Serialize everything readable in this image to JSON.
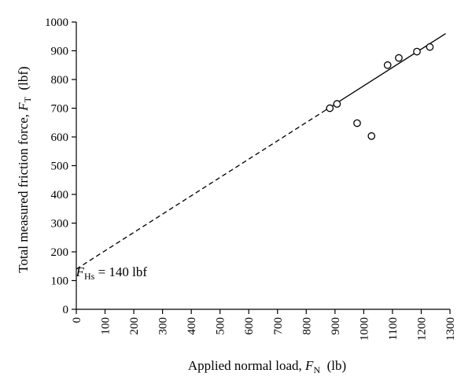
{
  "chart_data": {
    "type": "scatter",
    "xlabel": {
      "main": "Applied normal load, ",
      "var": "F",
      "sub": "N",
      "unit": "  (lb)"
    },
    "ylabel": {
      "main": "Total measured friction force, ",
      "var": "F",
      "sub": "T",
      "unit": "  (lbf)"
    },
    "xlim": [
      0,
      1300
    ],
    "ylim": [
      0,
      1000
    ],
    "xticks": [
      0,
      100,
      200,
      300,
      400,
      500,
      600,
      700,
      800,
      900,
      1000,
      1100,
      1200,
      1300
    ],
    "yticks": [
      0,
      100,
      200,
      300,
      400,
      500,
      600,
      700,
      800,
      900,
      1000
    ],
    "grid": false,
    "series": [
      {
        "marker": "open-circle",
        "points": [
          [
            882,
            700
          ],
          [
            907,
            715
          ],
          [
            977,
            648
          ],
          [
            1027,
            603
          ],
          [
            1083,
            850
          ],
          [
            1122,
            875
          ],
          [
            1185,
            897
          ],
          [
            1230,
            913
          ]
        ]
      }
    ],
    "fit_line": {
      "intercept": 140,
      "slope": 0.638,
      "dashed_range": [
        0,
        860
      ],
      "solid_range": [
        860,
        1285
      ]
    },
    "annotation": {
      "var": "F",
      "sub": "Hs",
      "text": " = 140 lbf",
      "x": 300,
      "y": 175
    }
  }
}
